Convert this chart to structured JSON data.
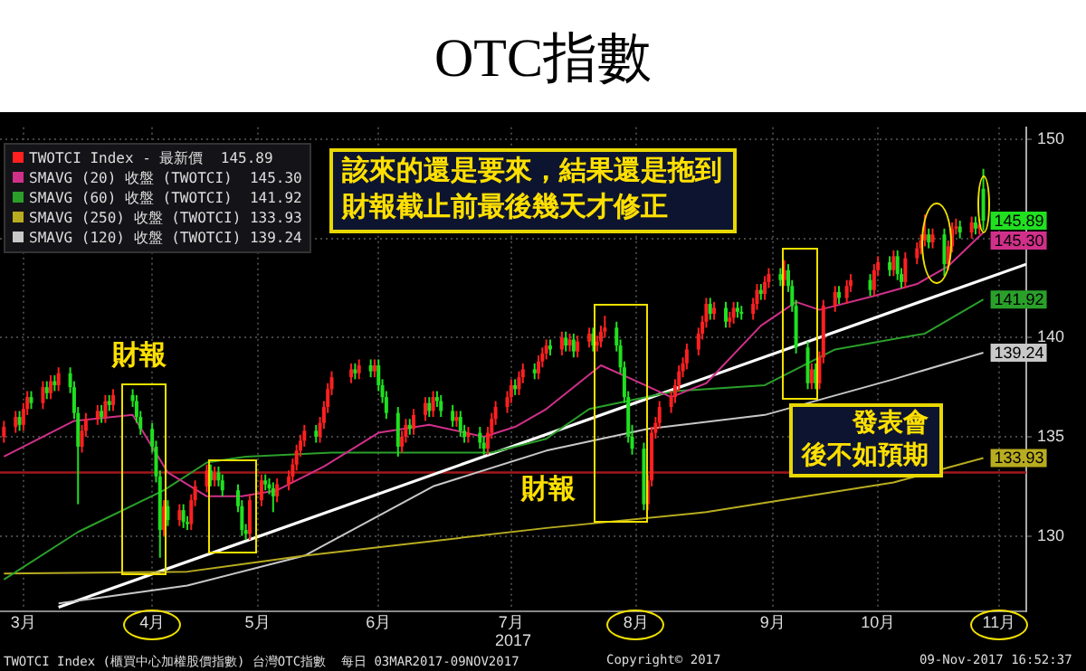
{
  "chart_data": {
    "type": "candlestick",
    "title": "OTC指數",
    "xlabel": "2017",
    "x": [
      "2017-03-03",
      "2017-03-06",
      "2017-03-07",
      "2017-03-08",
      "2017-03-09",
      "2017-03-10",
      "2017-03-13",
      "2017-03-14",
      "2017-03-15",
      "2017-03-16",
      "2017-03-17",
      "2017-03-20",
      "2017-03-21",
      "2017-03-22",
      "2017-03-23",
      "2017-03-24",
      "2017-03-27",
      "2017-03-28",
      "2017-03-29",
      "2017-03-30",
      "2017-03-31",
      "2017-04-05",
      "2017-04-06",
      "2017-04-07",
      "2017-04-10",
      "2017-04-11",
      "2017-04-12",
      "2017-04-13",
      "2017-04-14",
      "2017-04-17",
      "2017-04-18",
      "2017-04-19",
      "2017-04-20",
      "2017-04-21",
      "2017-04-24",
      "2017-04-25",
      "2017-04-26",
      "2017-04-27",
      "2017-04-28",
      "2017-05-02",
      "2017-05-03",
      "2017-05-04",
      "2017-05-05",
      "2017-05-08",
      "2017-05-09",
      "2017-05-10",
      "2017-05-11",
      "2017-05-12",
      "2017-05-15",
      "2017-05-16",
      "2017-05-17",
      "2017-05-18",
      "2017-05-19",
      "2017-05-22",
      "2017-05-23",
      "2017-05-24",
      "2017-05-25",
      "2017-05-26",
      "2017-05-31",
      "2017-06-01",
      "2017-06-02",
      "2017-06-05",
      "2017-06-06",
      "2017-06-07",
      "2017-06-08",
      "2017-06-09",
      "2017-06-12",
      "2017-06-13",
      "2017-06-14",
      "2017-06-15",
      "2017-06-16",
      "2017-06-19",
      "2017-06-20",
      "2017-06-21",
      "2017-06-22",
      "2017-06-23",
      "2017-06-26",
      "2017-06-27",
      "2017-06-28",
      "2017-06-29",
      "2017-06-30",
      "2017-07-03",
      "2017-07-04",
      "2017-07-05",
      "2017-07-06",
      "2017-07-07",
      "2017-07-10",
      "2017-07-11",
      "2017-07-12",
      "2017-07-13",
      "2017-07-14",
      "2017-07-17",
      "2017-07-18",
      "2017-07-19",
      "2017-07-20",
      "2017-07-21",
      "2017-07-24",
      "2017-07-25",
      "2017-07-26",
      "2017-07-27",
      "2017-07-28",
      "2017-07-31",
      "2017-08-01",
      "2017-08-02",
      "2017-08-03",
      "2017-08-04",
      "2017-08-07",
      "2017-08-08",
      "2017-08-09",
      "2017-08-10",
      "2017-08-11",
      "2017-08-14",
      "2017-08-15",
      "2017-08-16",
      "2017-08-17",
      "2017-08-18",
      "2017-08-21",
      "2017-08-22",
      "2017-08-23",
      "2017-08-24",
      "2017-08-25",
      "2017-08-28",
      "2017-08-29",
      "2017-08-30",
      "2017-08-31",
      "2017-09-01",
      "2017-09-04",
      "2017-09-05",
      "2017-09-06",
      "2017-09-07",
      "2017-09-08",
      "2017-09-11",
      "2017-09-12",
      "2017-09-13",
      "2017-09-14",
      "2017-09-15",
      "2017-09-18",
      "2017-09-19",
      "2017-09-20",
      "2017-09-21",
      "2017-09-22",
      "2017-09-25",
      "2017-09-26",
      "2017-09-27",
      "2017-09-28",
      "2017-09-29",
      "2017-10-02",
      "2017-10-03",
      "2017-10-05",
      "2017-10-06",
      "2017-10-11",
      "2017-10-12",
      "2017-10-13",
      "2017-10-16",
      "2017-10-17",
      "2017-10-18",
      "2017-10-19",
      "2017-10-20",
      "2017-10-23",
      "2017-10-24",
      "2017-10-25",
      "2017-10-26",
      "2017-10-27",
      "2017-10-30",
      "2017-10-31",
      "2017-11-01",
      "2017-11-02",
      "2017-11-03",
      "2017-11-06",
      "2017-11-07",
      "2017-11-08",
      "2017-11-09"
    ],
    "xlim": [
      "2017-03-02",
      "2017-11-20"
    ],
    "xticks": [
      {
        "value": "2017-03-08",
        "label": "3月"
      },
      {
        "value": "2017-04-10",
        "label": "4月"
      },
      {
        "value": "2017-05-07",
        "label": "5月"
      },
      {
        "value": "2017-06-07",
        "label": "6月"
      },
      {
        "value": "2017-07-11",
        "label": "7月"
      },
      {
        "value": "2017-08-12",
        "label": "8月"
      },
      {
        "value": "2017-09-16",
        "label": "9月"
      },
      {
        "value": "2017-10-13",
        "label": "10月"
      },
      {
        "value": "2017-11-13",
        "label": "11月"
      }
    ],
    "ylim": [
      126.2,
      150.6
    ],
    "yticks": [
      130,
      135,
      140,
      {
        "value": 145,
        "label": null
      },
      150
    ],
    "grid": true,
    "legend": "top left",
    "series": [
      {
        "name": "TWOTCI Index - 最新價  145.89",
        "color": "#ff2020",
        "value_labels": [
          null,
          null,
          null,
          null,
          null,
          null,
          null,
          null,
          null,
          null,
          null,
          null,
          null,
          null,
          null,
          null,
          null,
          null,
          null,
          null,
          null,
          null,
          null,
          null,
          null,
          null,
          null,
          null,
          null,
          null,
          null,
          null,
          null,
          null,
          null,
          null,
          null,
          null,
          null,
          null,
          null,
          null,
          null,
          null,
          null,
          null,
          null,
          null,
          null,
          null,
          null,
          null,
          null,
          null,
          null,
          null,
          null,
          null,
          null,
          null,
          null,
          null,
          null,
          null,
          null,
          null,
          null,
          null,
          null,
          null,
          null,
          null,
          null,
          null,
          null,
          null,
          null,
          null,
          null,
          null,
          null,
          null,
          null,
          null,
          null,
          null,
          null,
          null,
          null,
          null,
          null,
          null,
          null,
          null,
          null,
          null,
          null,
          null,
          null,
          null,
          null,
          null,
          null,
          null,
          null,
          null,
          null,
          null,
          null,
          null,
          null,
          null,
          null,
          null,
          null,
          null,
          null,
          null,
          null,
          null,
          null,
          null,
          null,
          null,
          null,
          null,
          null,
          null,
          null,
          null,
          null,
          null,
          null,
          null,
          null,
          null,
          null,
          null,
          null,
          null,
          null,
          null,
          null,
          null,
          null,
          null,
          null,
          null,
          null,
          null,
          null,
          null,
          null,
          null,
          null,
          null,
          null,
          null,
          null,
          null,
          null,
          null,
          null,
          null,
          null,
          null,
          null,
          null,
          null,
          null,
          null,
          "145.89"
        ],
        "ohlc": [
          [
            135.0,
            135.8,
            134.7,
            135.5
          ],
          [
            135.5,
            136.3,
            135.2,
            136.0
          ],
          [
            136.0,
            136.3,
            135.3,
            135.6
          ],
          [
            135.6,
            136.7,
            135.3,
            136.4
          ],
          [
            136.4,
            137.3,
            136.1,
            137.0
          ],
          [
            137.0,
            137.3,
            136.4,
            136.7
          ],
          [
            136.7,
            137.8,
            136.4,
            137.5
          ],
          [
            137.5,
            137.8,
            136.9,
            137.2
          ],
          [
            137.2,
            138.1,
            136.9,
            137.8
          ],
          [
            137.8,
            138.1,
            137.3,
            137.6
          ],
          [
            137.6,
            138.5,
            137.3,
            138.2
          ],
          [
            138.2,
            138.5,
            137.2,
            137.5
          ],
          [
            137.5,
            137.8,
            135.9,
            136.2
          ],
          [
            136.2,
            136.5,
            131.6,
            134.5
          ],
          [
            134.5,
            135.6,
            134.2,
            135.3
          ],
          [
            135.3,
            136.2,
            135.0,
            135.9
          ],
          [
            135.9,
            136.6,
            135.6,
            136.3
          ],
          [
            136.3,
            136.6,
            135.7,
            136.0
          ],
          [
            136.0,
            137.1,
            135.7,
            136.8
          ],
          [
            136.8,
            137.1,
            136.3,
            136.6
          ],
          [
            136.6,
            137.4,
            136.3,
            137.1
          ],
          [
            137.1,
            137.4,
            136.5,
            136.8
          ],
          [
            136.8,
            137.1,
            135.7,
            136.0
          ],
          [
            136.0,
            136.3,
            135.1,
            135.4
          ],
          [
            135.4,
            135.7,
            134.2,
            134.5
          ],
          [
            134.5,
            134.8,
            132.7,
            133.0
          ],
          [
            133.0,
            133.3,
            128.9,
            130.3
          ],
          [
            130.3,
            131.8,
            130.0,
            131.5
          ],
          [
            131.5,
            131.8,
            130.5,
            130.8
          ],
          [
            130.8,
            131.6,
            130.5,
            131.3
          ],
          [
            131.3,
            131.6,
            130.4,
            130.7
          ],
          [
            130.7,
            131.0,
            130.3,
            130.6
          ],
          [
            130.6,
            132.1,
            130.3,
            131.8
          ],
          [
            131.8,
            132.8,
            131.5,
            132.5
          ],
          [
            132.5,
            133.6,
            132.2,
            133.3
          ],
          [
            133.3,
            133.6,
            132.5,
            132.8
          ],
          [
            132.8,
            133.5,
            132.5,
            133.2
          ],
          [
            133.2,
            133.5,
            132.5,
            132.8
          ],
          [
            132.8,
            133.1,
            132.0,
            132.3
          ],
          [
            132.3,
            132.6,
            131.2,
            131.5
          ],
          [
            131.5,
            131.8,
            130.0,
            130.3
          ],
          [
            130.3,
            130.6,
            129.8,
            130.1
          ],
          [
            130.1,
            132.1,
            129.8,
            131.8
          ],
          [
            131.8,
            133.1,
            131.5,
            132.8
          ],
          [
            132.8,
            133.1,
            132.3,
            132.6
          ],
          [
            132.6,
            132.9,
            132.1,
            132.4
          ],
          [
            132.4,
            132.7,
            131.2,
            132.0
          ],
          [
            132.0,
            132.9,
            131.7,
            132.6
          ],
          [
            132.6,
            133.3,
            132.3,
            133.0
          ],
          [
            133.0,
            133.9,
            132.7,
            133.6
          ],
          [
            133.6,
            134.6,
            133.3,
            134.3
          ],
          [
            134.3,
            135.1,
            134.0,
            134.8
          ],
          [
            134.8,
            135.6,
            134.5,
            135.3
          ],
          [
            135.3,
            135.6,
            134.7,
            135.0
          ],
          [
            135.0,
            136.0,
            134.7,
            135.7
          ],
          [
            135.7,
            136.8,
            135.4,
            136.5
          ],
          [
            136.5,
            137.7,
            136.2,
            137.4
          ],
          [
            137.4,
            138.3,
            137.1,
            138.0
          ],
          [
            138.0,
            138.7,
            137.7,
            138.4
          ],
          [
            138.4,
            138.7,
            137.9,
            138.2
          ],
          [
            138.2,
            138.9,
            137.9,
            138.6
          ],
          [
            138.6,
            138.9,
            138.0,
            138.3
          ],
          [
            138.3,
            138.9,
            138.0,
            138.6
          ],
          [
            138.6,
            138.9,
            137.3,
            137.6
          ],
          [
            137.6,
            137.9,
            136.7,
            137.0
          ],
          [
            137.0,
            137.3,
            135.9,
            136.2
          ],
          [
            136.2,
            136.5,
            134.0,
            134.5
          ],
          [
            134.5,
            135.3,
            134.2,
            135.0
          ],
          [
            135.0,
            135.9,
            134.7,
            135.6
          ],
          [
            135.6,
            135.9,
            135.1,
            135.4
          ],
          [
            135.4,
            136.4,
            135.1,
            136.1
          ],
          [
            136.1,
            137.0,
            135.8,
            136.7
          ],
          [
            136.7,
            137.0,
            136.0,
            136.3
          ],
          [
            136.3,
            137.3,
            136.0,
            137.0
          ],
          [
            137.0,
            137.3,
            136.5,
            136.8
          ],
          [
            136.8,
            137.1,
            136.0,
            136.3
          ],
          [
            136.3,
            136.6,
            135.5,
            135.8
          ],
          [
            135.8,
            136.3,
            135.5,
            136.0
          ],
          [
            136.0,
            136.3,
            135.0,
            135.3
          ],
          [
            135.3,
            135.6,
            134.7,
            135.0
          ],
          [
            135.0,
            135.5,
            134.7,
            135.2
          ],
          [
            135.2,
            135.5,
            134.4,
            134.7
          ],
          [
            134.7,
            135.0,
            134.1,
            134.4
          ],
          [
            134.4,
            135.5,
            134.1,
            135.2
          ],
          [
            135.2,
            136.2,
            134.9,
            135.9
          ],
          [
            135.9,
            136.8,
            135.6,
            136.5
          ],
          [
            136.5,
            137.3,
            136.2,
            137.0
          ],
          [
            137.0,
            137.9,
            136.7,
            137.6
          ],
          [
            137.6,
            137.9,
            137.1,
            137.4
          ],
          [
            137.4,
            138.3,
            137.1,
            138.0
          ],
          [
            138.0,
            138.7,
            137.7,
            138.4
          ],
          [
            138.4,
            138.7,
            137.9,
            138.2
          ],
          [
            138.2,
            139.1,
            137.9,
            138.8
          ],
          [
            138.8,
            139.5,
            138.5,
            139.2
          ],
          [
            139.2,
            139.9,
            138.9,
            139.6
          ],
          [
            139.6,
            139.9,
            139.1,
            139.4
          ],
          [
            139.4,
            140.3,
            139.1,
            140.0
          ],
          [
            140.0,
            140.3,
            139.3,
            139.6
          ],
          [
            139.6,
            140.2,
            139.3,
            139.9
          ],
          [
            139.9,
            140.2,
            139.0,
            139.3
          ],
          [
            139.3,
            140.1,
            139.0,
            139.8
          ],
          [
            139.8,
            140.5,
            139.5,
            140.2
          ],
          [
            140.2,
            140.5,
            139.3,
            139.6
          ],
          [
            139.6,
            140.1,
            139.3,
            139.8
          ],
          [
            139.8,
            140.6,
            139.5,
            140.3
          ],
          [
            140.3,
            141.1,
            140.0,
            140.5
          ],
          [
            140.5,
            140.8,
            139.3,
            139.6
          ],
          [
            139.6,
            139.9,
            138.2,
            138.5
          ],
          [
            138.5,
            138.8,
            136.7,
            137.0
          ],
          [
            137.0,
            137.3,
            134.7,
            135.0
          ],
          [
            135.0,
            135.6,
            134.1,
            134.4
          ],
          [
            134.4,
            134.7,
            131.3,
            131.6
          ],
          [
            131.6,
            133.1,
            131.3,
            132.8
          ],
          [
            132.8,
            135.5,
            132.5,
            135.2
          ],
          [
            135.2,
            136.0,
            134.9,
            135.7
          ],
          [
            135.7,
            136.8,
            135.4,
            136.5
          ],
          [
            136.5,
            137.3,
            136.2,
            137.0
          ],
          [
            137.0,
            137.9,
            136.7,
            137.6
          ],
          [
            137.6,
            138.6,
            137.3,
            138.3
          ],
          [
            138.3,
            139.0,
            138.0,
            138.7
          ],
          [
            138.7,
            139.7,
            138.4,
            139.4
          ],
          [
            139.4,
            140.5,
            139.1,
            140.2
          ],
          [
            140.2,
            141.1,
            139.9,
            140.8
          ],
          [
            140.8,
            142.0,
            140.5,
            141.7
          ],
          [
            141.7,
            142.0,
            140.9,
            141.2
          ],
          [
            141.2,
            141.8,
            140.9,
            141.5
          ],
          [
            141.5,
            141.8,
            140.5,
            140.8
          ],
          [
            140.8,
            141.3,
            140.5,
            141.0
          ],
          [
            141.0,
            141.8,
            140.7,
            141.5
          ],
          [
            141.5,
            141.8,
            141.0,
            141.3
          ],
          [
            141.3,
            141.6,
            140.9,
            141.2
          ],
          [
            141.2,
            142.0,
            140.9,
            141.7
          ],
          [
            141.7,
            142.7,
            141.4,
            142.4
          ],
          [
            142.4,
            142.7,
            141.9,
            142.2
          ],
          [
            142.2,
            143.1,
            141.9,
            142.8
          ],
          [
            142.8,
            143.5,
            142.5,
            143.2
          ],
          [
            143.2,
            143.5,
            142.6,
            142.9
          ],
          [
            142.9,
            143.9,
            142.6,
            143.4
          ],
          [
            143.4,
            143.7,
            142.3,
            142.6
          ],
          [
            142.6,
            142.9,
            141.3,
            141.6
          ],
          [
            141.6,
            141.9,
            139.2,
            139.5
          ],
          [
            139.5,
            139.8,
            137.4,
            137.7
          ],
          [
            137.7,
            138.7,
            137.4,
            138.4
          ],
          [
            138.4,
            138.7,
            137.4,
            137.7
          ],
          [
            137.7,
            139.3,
            137.4,
            139.0
          ],
          [
            139.0,
            141.9,
            138.7,
            141.6
          ],
          [
            141.6,
            142.6,
            141.3,
            142.3
          ],
          [
            142.3,
            142.6,
            141.7,
            142.0
          ],
          [
            142.0,
            142.9,
            141.7,
            142.6
          ],
          [
            142.6,
            143.2,
            142.3,
            142.9
          ],
          [
            142.9,
            143.2,
            142.1,
            142.4
          ],
          [
            142.4,
            143.7,
            142.1,
            143.4
          ],
          [
            143.4,
            144.1,
            143.1,
            143.8
          ],
          [
            143.8,
            144.1,
            143.1,
            143.4
          ],
          [
            143.4,
            144.4,
            143.1,
            144.1
          ],
          [
            144.1,
            144.4,
            142.9,
            143.2
          ],
          [
            143.2,
            143.5,
            142.5,
            142.8
          ],
          [
            142.8,
            144.3,
            142.5,
            144.0
          ],
          [
            144.0,
            144.8,
            143.7,
            144.5
          ],
          [
            144.5,
            145.2,
            144.2,
            144.9
          ],
          [
            144.9,
            146.2,
            144.6,
            145.2
          ],
          [
            145.2,
            145.5,
            144.5,
            144.8
          ],
          [
            144.8,
            145.5,
            144.5,
            145.2
          ],
          [
            145.2,
            145.5,
            143.1,
            143.7
          ],
          [
            143.7,
            144.9,
            143.4,
            144.6
          ],
          [
            144.6,
            145.8,
            144.3,
            145.5
          ],
          [
            145.5,
            146.0,
            145.2,
            145.6
          ],
          [
            145.6,
            145.9,
            145.0,
            145.3
          ],
          [
            145.3,
            146.1,
            145.0,
            145.8
          ],
          [
            145.8,
            146.1,
            145.2,
            145.5
          ],
          [
            145.5,
            146.0,
            145.2,
            145.7
          ],
          [
            147.5,
            148.5,
            145.4,
            145.89
          ]
        ],
        "colors": [
          "#ff2020",
          "#ff2020",
          "#20e020",
          "#ff2020",
          "#ff2020",
          "#20e020",
          "#ff2020",
          "#20e020",
          "#ff2020",
          "#20e020",
          "#ff2020",
          "#20e020",
          "#20e020",
          "#20e020",
          "#ff2020",
          "#ff2020",
          "#ff2020",
          "#20e020",
          "#ff2020",
          "#20e020",
          "#ff2020",
          "#20e020",
          "#20e020",
          "#20e020",
          "#20e020",
          "#20e020",
          "#20e020",
          "#ff2020",
          "#20e020",
          "#ff2020",
          "#20e020",
          "#20e020",
          "#ff2020",
          "#ff2020",
          "#ff2020",
          "#20e020",
          "#ff2020",
          "#20e020",
          "#20e020",
          "#20e020",
          "#20e020",
          "#20e020",
          "#ff2020",
          "#ff2020",
          "#20e020",
          "#20e020",
          "#20e020",
          "#ff2020",
          "#ff2020",
          "#ff2020",
          "#ff2020",
          "#ff2020",
          "#ff2020",
          "#20e020",
          "#ff2020",
          "#ff2020",
          "#ff2020",
          "#ff2020",
          "#ff2020",
          "#20e020",
          "#ff2020",
          "#20e020",
          "#ff2020",
          "#20e020",
          "#20e020",
          "#20e020",
          "#20e020",
          "#ff2020",
          "#ff2020",
          "#20e020",
          "#ff2020",
          "#ff2020",
          "#20e020",
          "#ff2020",
          "#20e020",
          "#20e020",
          "#20e020",
          "#ff2020",
          "#20e020",
          "#20e020",
          "#ff2020",
          "#20e020",
          "#20e020",
          "#ff2020",
          "#ff2020",
          "#ff2020",
          "#ff2020",
          "#ff2020",
          "#20e020",
          "#ff2020",
          "#ff2020",
          "#20e020",
          "#ff2020",
          "#ff2020",
          "#ff2020",
          "#20e020",
          "#ff2020",
          "#20e020",
          "#ff2020",
          "#20e020",
          "#ff2020",
          "#ff2020",
          "#20e020",
          "#ff2020",
          "#ff2020",
          "#ff2020",
          "#20e020",
          "#20e020",
          "#20e020",
          "#20e020",
          "#20e020",
          "#20e020",
          "#ff2020",
          "#ff2020",
          "#ff2020",
          "#ff2020",
          "#ff2020",
          "#ff2020",
          "#ff2020",
          "#ff2020",
          "#ff2020",
          "#ff2020",
          "#ff2020",
          "#ff2020",
          "#20e020",
          "#ff2020",
          "#20e020",
          "#ff2020",
          "#ff2020",
          "#20e020",
          "#20e020",
          "#ff2020",
          "#ff2020",
          "#20e020",
          "#ff2020",
          "#ff2020",
          "#20e020",
          "#ff2020",
          "#20e020",
          "#20e020",
          "#20e020",
          "#20e020",
          "#ff2020",
          "#20e020",
          "#ff2020",
          "#ff2020",
          "#ff2020",
          "#20e020",
          "#ff2020",
          "#ff2020",
          "#20e020",
          "#ff2020",
          "#ff2020",
          "#20e020",
          "#ff2020",
          "#20e020",
          "#20e020",
          "#ff2020",
          "#ff2020",
          "#ff2020",
          "#ff2020",
          "#20e020",
          "#ff2020",
          "#20e020",
          "#ff2020",
          "#ff2020",
          "#ff2020",
          "#20e020",
          "#ff2020",
          "#20e020",
          "#ff2020",
          "#20e020"
        ]
      },
      {
        "name": "SMAVG (20) 收盤 (TWOTCI)  145.30",
        "type": "line",
        "color": "#d0308a",
        "x": [
          "2017-03-03",
          "2017-03-21",
          "2017-04-05",
          "2017-04-14",
          "2017-04-24",
          "2017-05-03",
          "2017-05-12",
          "2017-05-24",
          "2017-06-07",
          "2017-06-20",
          "2017-07-04",
          "2017-07-12",
          "2017-07-20",
          "2017-08-03",
          "2017-08-11",
          "2017-08-21",
          "2017-08-30",
          "2017-09-13",
          "2017-09-22",
          "2017-09-28",
          "2017-10-12",
          "2017-10-23",
          "2017-10-31",
          "2017-11-09"
        ],
        "values": [
          134.0,
          135.8,
          136.1,
          133.2,
          132.0,
          132.0,
          132.3,
          133.5,
          135.2,
          135.6,
          135.0,
          135.5,
          136.4,
          138.6,
          137.9,
          137.0,
          137.7,
          140.6,
          141.8,
          141.4,
          142.1,
          142.7,
          143.6,
          145.3
        ],
        "value_labels": [
          null,
          null,
          null,
          null,
          null,
          null,
          null,
          null,
          null,
          null,
          null,
          null,
          null,
          null,
          null,
          null,
          null,
          null,
          null,
          null,
          null,
          null,
          null,
          "145.30"
        ]
      },
      {
        "name": "SMAVG (60) 收盤 (TWOTCI)  141.92",
        "type": "line",
        "color": "#2aa02a",
        "x": [
          "2017-03-03",
          "2017-03-22",
          "2017-04-13",
          "2017-04-24",
          "2017-05-04",
          "2017-05-26",
          "2017-07-06",
          "2017-07-20",
          "2017-07-31",
          "2017-08-22",
          "2017-09-14",
          "2017-10-02",
          "2017-10-25",
          "2017-11-09"
        ],
        "values": [
          127.8,
          130.2,
          132.3,
          133.7,
          134.0,
          134.2,
          134.2,
          134.9,
          136.4,
          137.3,
          137.6,
          139.4,
          140.2,
          141.92
        ],
        "value_labels": [
          null,
          null,
          null,
          null,
          null,
          null,
          null,
          null,
          null,
          null,
          null,
          null,
          null,
          "141.92"
        ]
      },
      {
        "name": "SMAVG (250) 收盤 (TWOTCI) 133.93",
        "type": "line",
        "color": "#b8ac20",
        "x": [
          "2017-03-03",
          "2017-04-19",
          "2017-05-19",
          "2017-07-20",
          "2017-08-30",
          "2017-10-17",
          "2017-11-09"
        ],
        "values": [
          128.1,
          128.2,
          129.0,
          130.4,
          131.2,
          132.7,
          133.93
        ],
        "value_labels": [
          null,
          null,
          null,
          null,
          null,
          null,
          "133.93"
        ]
      },
      {
        "name": "SMAVG (120) 收盤 (TWOTCI) 139.24",
        "type": "line",
        "color": "#c8c8c8",
        "x": [
          "2017-03-17",
          "2017-04-19",
          "2017-05-19",
          "2017-06-21",
          "2017-07-20",
          "2017-08-15",
          "2017-09-14",
          "2017-10-17",
          "2017-11-09"
        ],
        "values": [
          126.6,
          127.5,
          129.0,
          132.5,
          134.3,
          135.4,
          136.1,
          137.9,
          139.24
        ],
        "value_labels": [
          null,
          null,
          null,
          null,
          null,
          null,
          null,
          null,
          "139.24"
        ]
      },
      {
        "type": "line",
        "color": "#ffffff",
        "x": [
          "2017-03-17",
          "2017-11-20"
        ],
        "values": [
          126.4,
          143.7
        ]
      }
    ],
    "ref_lines": [
      {
        "axis": "y",
        "value": 133.2,
        "color": "#a01818"
      }
    ],
    "annotations": [
      "該來的還是要來，結果還是拖到財報截止前最後幾天才修正",
      "財報",
      "財報",
      "發表會後不如預期",
      "TWOTCI Index (櫃買中心加權股價指數) 台灣OTC指數  每日 03MAR2017-09NOV2017",
      "Copyright© 2017",
      "09-Nov-2017 16:52:37"
    ]
  }
}
